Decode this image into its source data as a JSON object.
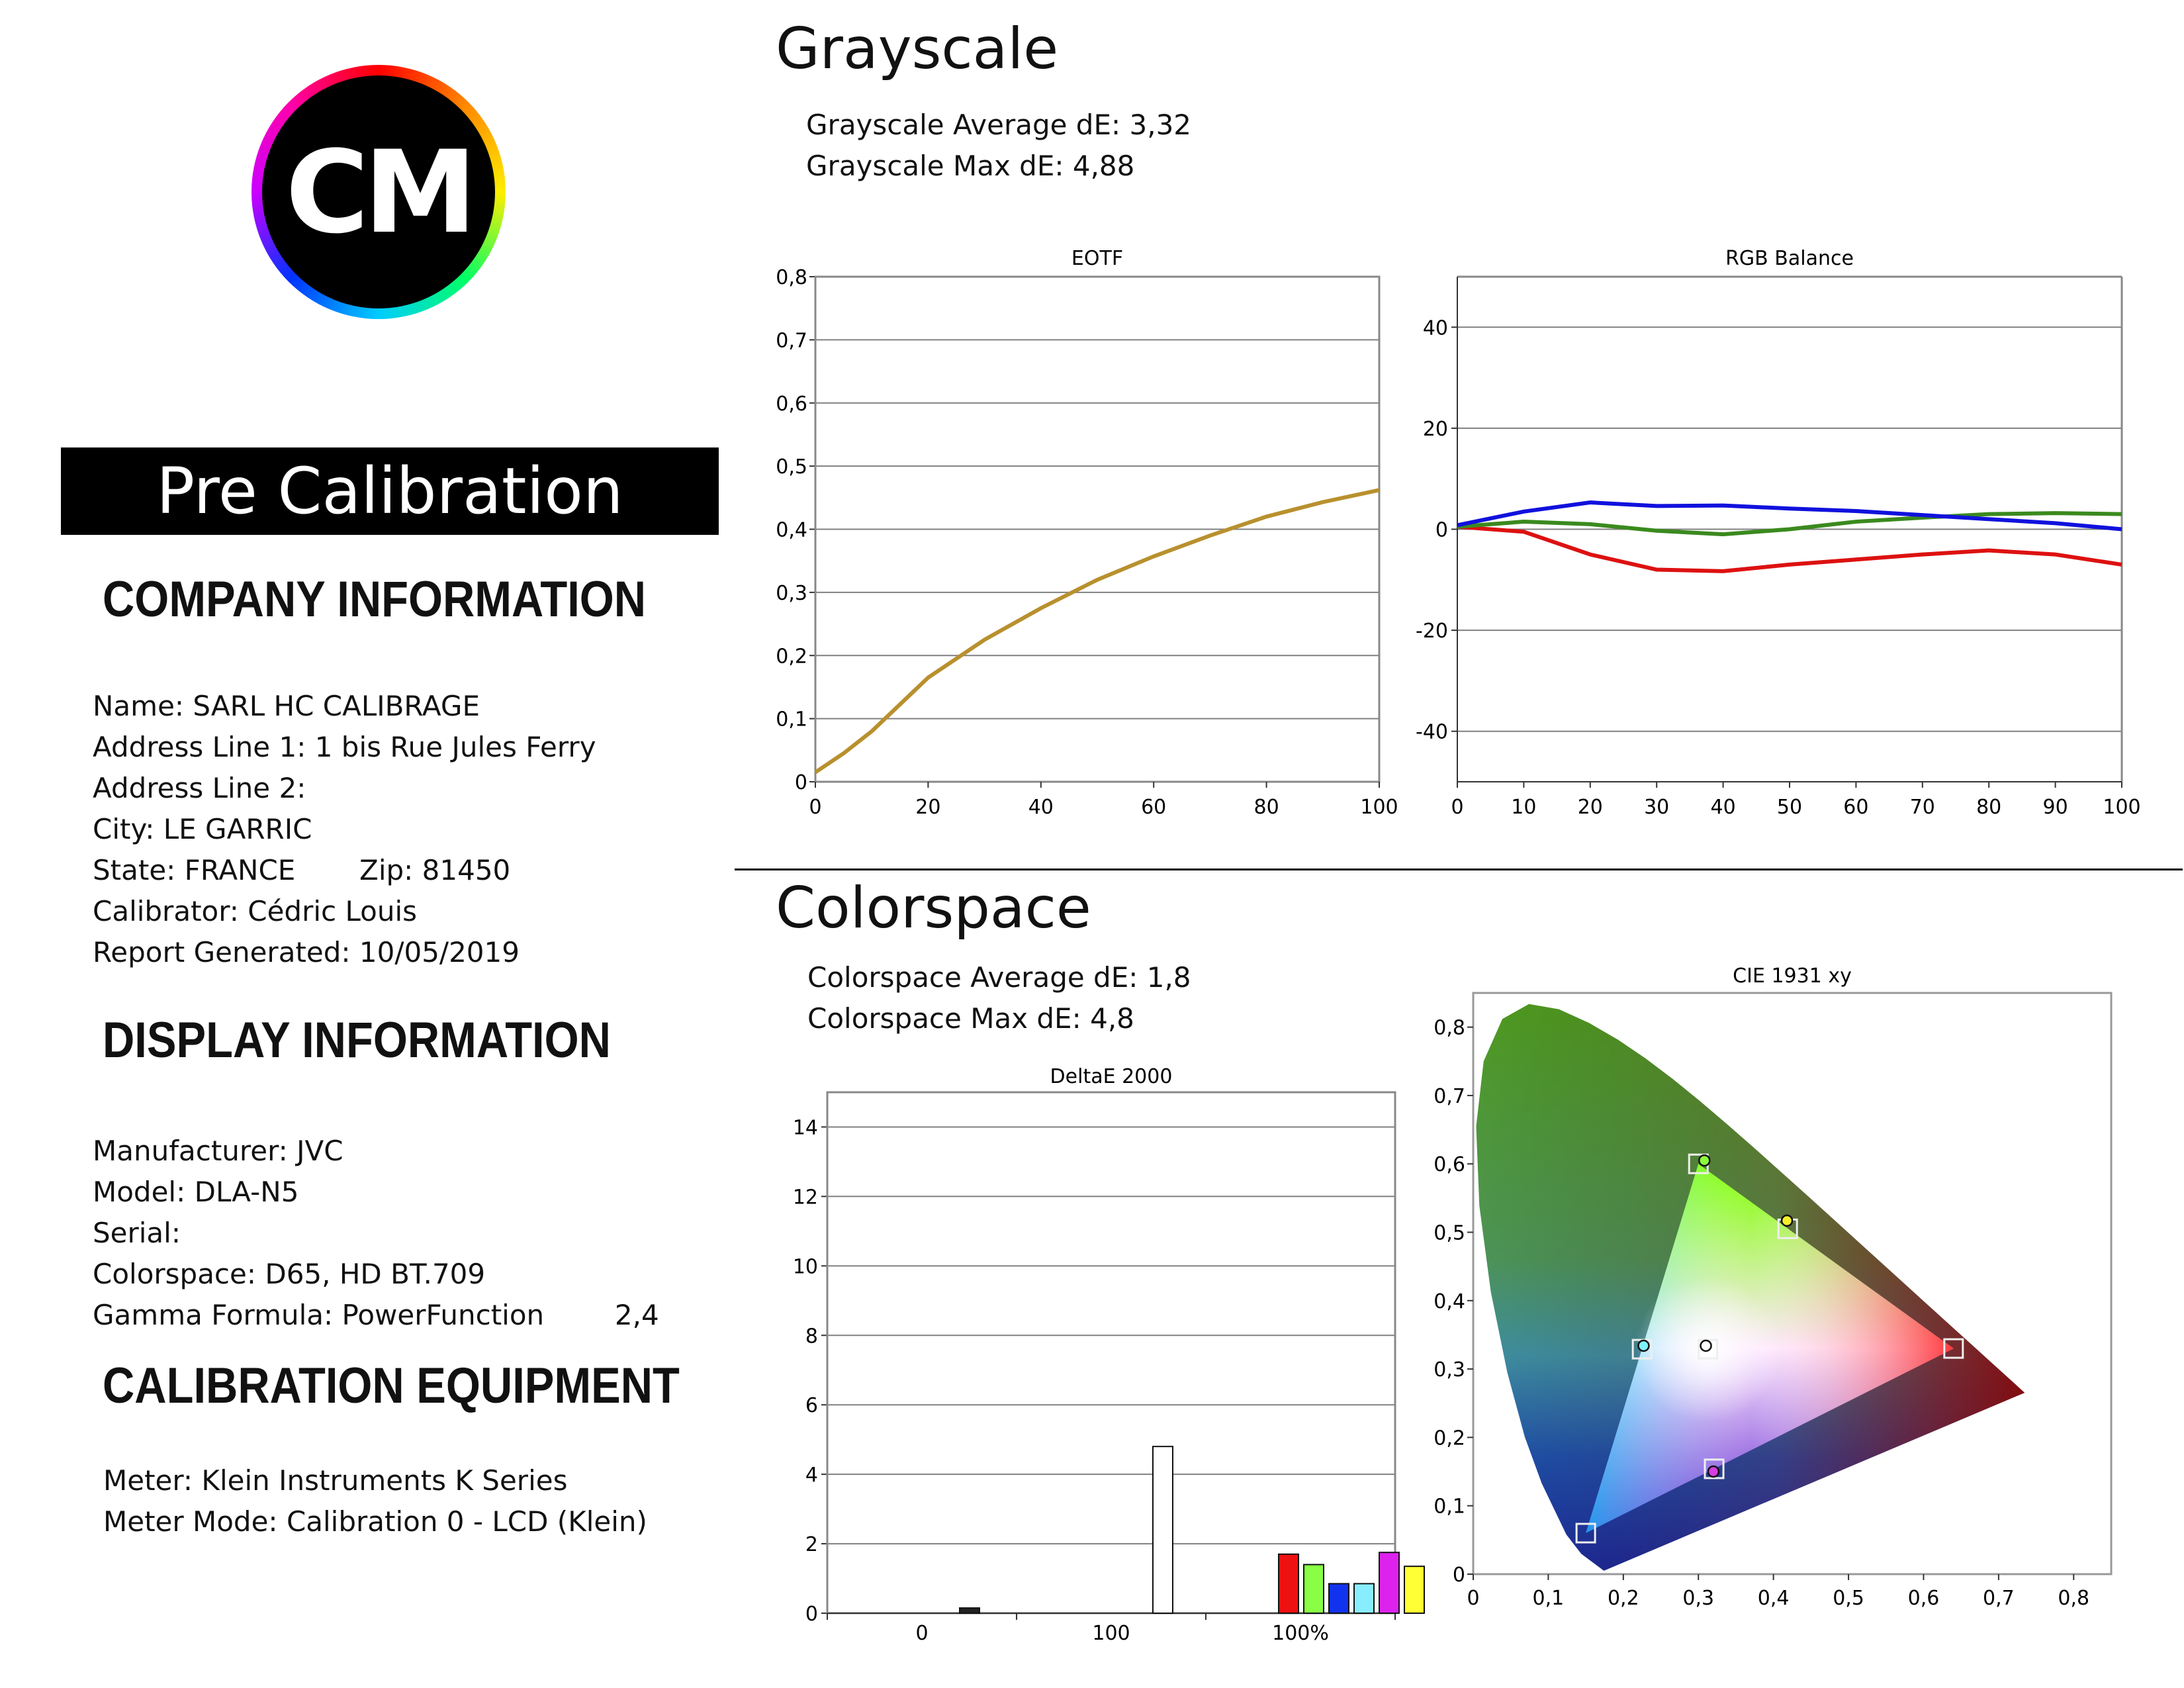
{
  "logo": {
    "text": "CM"
  },
  "banner": "Pre Calibration",
  "company": {
    "heading": "COMPANY INFORMATION",
    "name": "Name: SARL HC CALIBRAGE",
    "address1": "Address Line 1: 1 bis Rue Jules Ferry",
    "address2": "Address Line 2:",
    "city": "City: LE GARRIC",
    "state": "State: FRANCE",
    "zip": "Zip: 81450",
    "calibrator": "Calibrator: Cédric Louis",
    "report": "Report Generated: 10/05/2019"
  },
  "display": {
    "heading": "DISPLAY INFORMATION",
    "manufacturer": "Manufacturer: JVC",
    "model": "Model: DLA-N5",
    "serial": "Serial:",
    "colorspace": "Colorspace: D65, HD BT.709",
    "gamma_label": "Gamma Formula: PowerFunction",
    "gamma_value": "2,4"
  },
  "equipment": {
    "heading": "CALIBRATION EQUIPMENT",
    "meter": "Meter: Klein Instruments K Series",
    "mode": "Meter Mode: Calibration 0 - LCD (Klein)"
  },
  "grayscale": {
    "title": "Grayscale",
    "avg": "Grayscale Average dE: 3,32",
    "max": "Grayscale Max dE: 4,88"
  },
  "colorspace": {
    "title": "Colorspace",
    "avg": "Colorspace Average dE: 1,8",
    "max": "Colorspace Max dE: 4,8"
  },
  "chart_data": [
    {
      "type": "line",
      "title": "EOTF",
      "xlim": [
        0,
        100
      ],
      "ylim": [
        0,
        0.8
      ],
      "x_ticks": [
        "0",
        "20",
        "40",
        "60",
        "80",
        "100"
      ],
      "y_ticks": [
        "0",
        "0,1",
        "0,2",
        "0,3",
        "0,4",
        "0,5",
        "0,6",
        "0,7",
        "0,8"
      ],
      "colors": {
        "measured": "#b8902e",
        "target": "#808080",
        "grid": "#808080"
      },
      "series": [
        {
          "x": [
            0,
            5,
            10,
            20,
            30,
            40,
            50,
            60,
            70,
            80,
            90,
            100
          ],
          "y": [
            0.015,
            0.045,
            0.08,
            0.165,
            0.225,
            0.275,
            0.32,
            0.357,
            0.39,
            0.42,
            0.443,
            0.462
          ]
        }
      ]
    },
    {
      "type": "line",
      "title": "RGB Balance",
      "xlim": [
        0,
        100
      ],
      "ylim": [
        -50,
        50
      ],
      "x_ticks": [
        "0",
        "10",
        "20",
        "30",
        "40",
        "50",
        "60",
        "70",
        "80",
        "90",
        "100"
      ],
      "y_ticks": [
        "-40",
        "-20",
        "0",
        "20",
        "40"
      ],
      "series": [
        {
          "color": "#dd1111",
          "x": [
            0,
            10,
            20,
            30,
            40,
            50,
            60,
            70,
            80,
            90,
            100
          ],
          "y": [
            0.5,
            -0.5,
            -5,
            -8,
            -8.3,
            -7,
            -6,
            -5,
            -4.2,
            -5,
            -7
          ]
        },
        {
          "color": "#3a8a1e",
          "x": [
            0,
            10,
            20,
            30,
            40,
            50,
            60,
            70,
            80,
            90,
            100
          ],
          "y": [
            0.5,
            1.5,
            1,
            -0.3,
            -1,
            0,
            1.5,
            2.3,
            3,
            3.2,
            3
          ]
        },
        {
          "color": "#1111dd",
          "x": [
            0,
            10,
            20,
            30,
            40,
            50,
            60,
            70,
            80,
            90,
            100
          ],
          "y": [
            0.8,
            3.5,
            5.3,
            4.6,
            4.7,
            4.1,
            3.6,
            2.8,
            2,
            1.2,
            0
          ]
        }
      ]
    },
    {
      "type": "bar",
      "title": "DeltaE 2000",
      "ylim": [
        0,
        15
      ],
      "y_ticks": [
        "0",
        "2",
        "4",
        "6",
        "8",
        "10",
        "12",
        "14"
      ],
      "x_ticks": [
        "0",
        "100",
        "100%"
      ],
      "bars": [
        {
          "value": 0.15,
          "color": "#222222"
        },
        {
          "value": 4.8,
          "color": "#ffffff"
        },
        {
          "value": 1.7,
          "color": "#ee1111"
        },
        {
          "value": 1.4,
          "color": "#88ff44"
        },
        {
          "value": 0.85,
          "color": "#1133ee"
        },
        {
          "value": 0.85,
          "color": "#88eeff"
        },
        {
          "value": 1.75,
          "color": "#dd22ee"
        },
        {
          "value": 1.35,
          "color": "#ffff33"
        }
      ]
    },
    {
      "type": "scatter",
      "title": "CIE 1931 xy",
      "xlim": [
        0,
        0.85
      ],
      "ylim": [
        0,
        0.85
      ],
      "x_ticks": [
        "0",
        "0,1",
        "0,2",
        "0,3",
        "0,4",
        "0,5",
        "0,6",
        "0,7",
        "0,8"
      ],
      "y_ticks": [
        "0",
        "0,1",
        "0,2",
        "0,3",
        "0,4",
        "0,5",
        "0,6",
        "0,7",
        "0,8"
      ],
      "targets": [
        {
          "name": "red",
          "x": 0.64,
          "y": 0.33
        },
        {
          "name": "green",
          "x": 0.3,
          "y": 0.6
        },
        {
          "name": "blue",
          "x": 0.15,
          "y": 0.06
        },
        {
          "name": "cyan",
          "x": 0.225,
          "y": 0.329
        },
        {
          "name": "magenta",
          "x": 0.321,
          "y": 0.154
        },
        {
          "name": "yellow",
          "x": 0.419,
          "y": 0.505
        },
        {
          "name": "white",
          "x": 0.3127,
          "y": 0.329
        }
      ],
      "measured": [
        {
          "name": "green",
          "x": 0.308,
          "y": 0.605,
          "color": "#8dfb3d"
        },
        {
          "name": "yellow",
          "x": 0.418,
          "y": 0.517,
          "color": "#f4ef2a"
        },
        {
          "name": "cyan",
          "x": 0.227,
          "y": 0.334,
          "color": "#7ef2ff"
        },
        {
          "name": "white",
          "x": 0.31,
          "y": 0.334,
          "color": "#ffffff"
        },
        {
          "name": "magenta",
          "x": 0.32,
          "y": 0.15,
          "color": "#d53ee0"
        }
      ]
    }
  ]
}
